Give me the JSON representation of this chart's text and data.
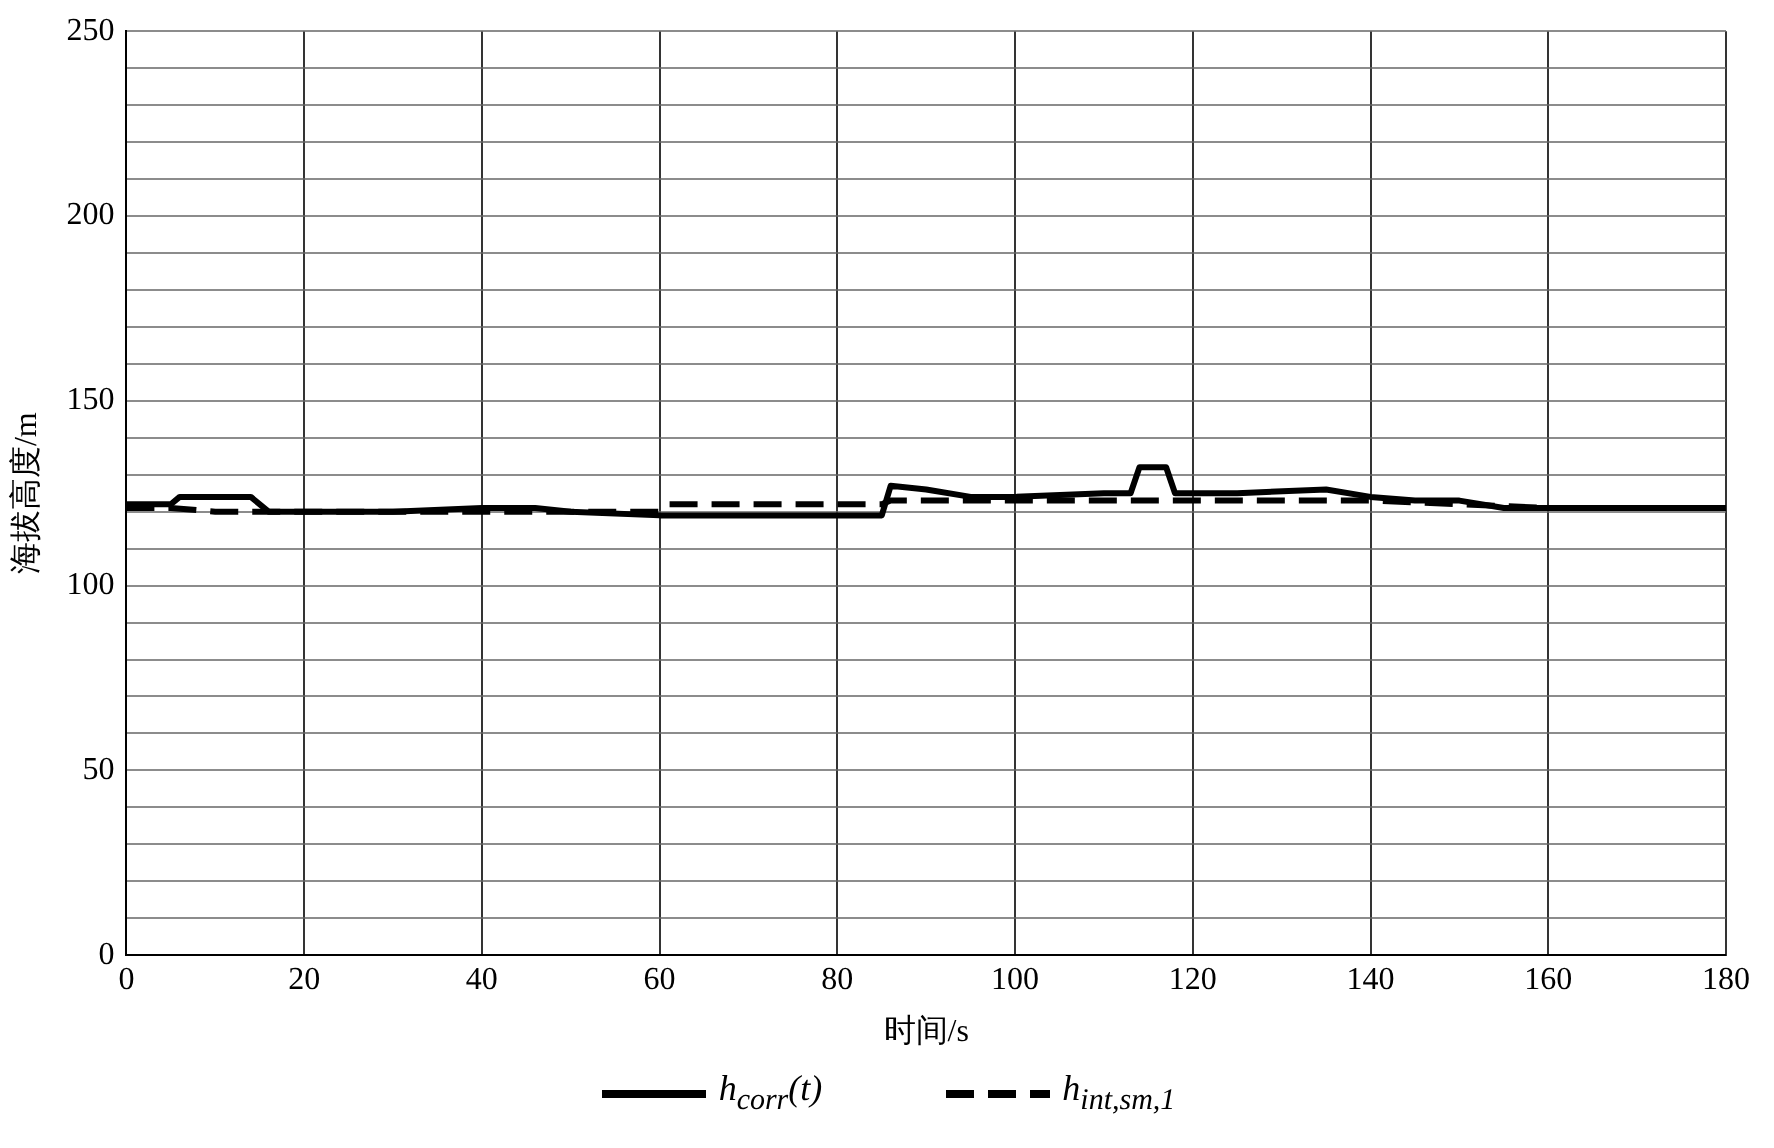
{
  "chart_data": {
    "type": "line",
    "xlabel": "时间/s",
    "ylabel": "海拔高度/m",
    "xlim": [
      0,
      180
    ],
    "xticks": [
      0,
      20,
      40,
      60,
      80,
      100,
      120,
      140,
      160,
      180
    ],
    "ylim": [
      0,
      250
    ],
    "yticks": [
      0,
      {
        "value": 10,
        "label": null
      },
      {
        "value": 20,
        "label": null
      },
      {
        "value": 30,
        "label": null
      },
      {
        "value": 40,
        "label": null
      },
      50,
      {
        "value": 60,
        "label": null
      },
      {
        "value": 70,
        "label": null
      },
      {
        "value": 80,
        "label": null
      },
      {
        "value": 90,
        "label": null
      },
      100,
      {
        "value": 110,
        "label": null
      },
      {
        "value": 120,
        "label": null
      },
      {
        "value": 130,
        "label": null
      },
      {
        "value": 140,
        "label": null
      },
      150,
      {
        "value": 160,
        "label": null
      },
      {
        "value": 170,
        "label": null
      },
      {
        "value": 180,
        "label": null
      },
      {
        "value": 190,
        "label": null
      },
      200,
      {
        "value": 210,
        "label": null
      },
      {
        "value": 220,
        "label": null
      },
      {
        "value": 230,
        "label": null
      },
      {
        "value": 240,
        "label": null
      },
      250
    ],
    "grid": true,
    "legend": "bottom",
    "marker": "none",
    "series": [
      {
        "name": "h$_{corr}$(t)",
        "color": "#000000",
        "line_style": "solid",
        "x": [
          0,
          5,
          6,
          14,
          16,
          20,
          30,
          40,
          46,
          50,
          60,
          70,
          85,
          86,
          90,
          95,
          100,
          110,
          113,
          114,
          117,
          118,
          125,
          135,
          140,
          145,
          150,
          155,
          160,
          170,
          180
        ],
        "values": [
          122,
          122,
          124,
          124,
          120,
          120,
          120,
          121,
          121,
          120,
          119,
          119,
          119,
          127,
          126,
          124,
          124,
          125,
          125,
          132,
          132,
          125,
          125,
          126,
          124,
          123,
          123,
          121,
          121,
          121,
          121
        ]
      },
      {
        "name": "h$_{int,sm,1}$",
        "color": "#000000",
        "line_style": "dashed",
        "x": [
          0,
          5,
          10,
          20,
          40,
          60,
          61,
          85,
          86,
          100,
          120,
          140,
          150,
          160,
          180
        ],
        "values": [
          121,
          121,
          120,
          120,
          120,
          120,
          122,
          122,
          123,
          123,
          123,
          123,
          122,
          121,
          121
        ]
      }
    ]
  }
}
